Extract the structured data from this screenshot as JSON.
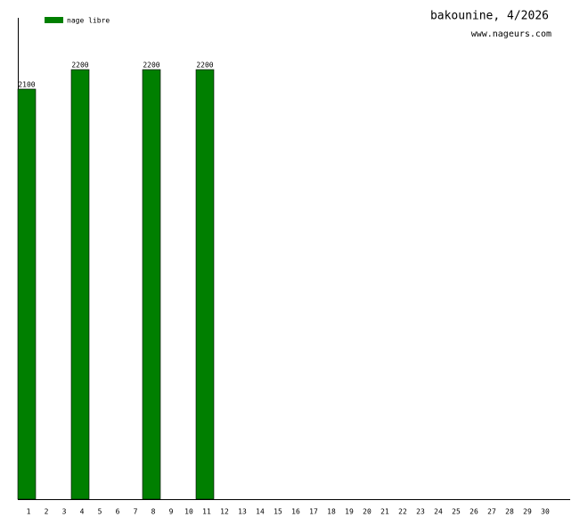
{
  "chart_data": {
    "type": "bar",
    "title": "bakounine, 4/2026",
    "subtitle": "www.nageurs.com",
    "categories": [
      "1",
      "2",
      "3",
      "4",
      "5",
      "6",
      "7",
      "8",
      "9",
      "10",
      "11",
      "12",
      "13",
      "14",
      "15",
      "16",
      "17",
      "18",
      "19",
      "20",
      "21",
      "22",
      "23",
      "24",
      "25",
      "26",
      "27",
      "28",
      "29",
      "30"
    ],
    "series": [
      {
        "name": "nage libre",
        "color": "#007f00",
        "values": [
          2100,
          null,
          null,
          2200,
          null,
          null,
          null,
          2200,
          null,
          null,
          2200,
          null,
          null,
          null,
          null,
          null,
          null,
          null,
          null,
          null,
          null,
          null,
          null,
          null,
          null,
          null,
          null,
          null,
          null,
          null
        ]
      }
    ],
    "ylim": [
      0,
      2465
    ]
  }
}
